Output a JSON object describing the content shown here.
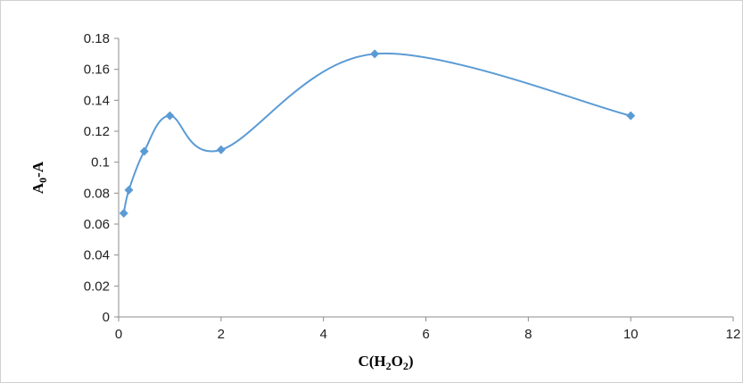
{
  "chart_data": {
    "type": "line",
    "title": "",
    "xlabel": {
      "base": "C(H",
      "sub1": "2",
      "mid": "O",
      "sub2": "2",
      "end": ")"
    },
    "ylabel": {
      "base": "A",
      "sub": "0",
      "end": "-A"
    },
    "xlim": [
      0,
      12
    ],
    "ylim": [
      0,
      0.18
    ],
    "xticks": [
      0,
      2,
      4,
      6,
      8,
      10,
      12
    ],
    "yticks": [
      0,
      0.02,
      0.04,
      0.06,
      0.08,
      0.1,
      0.12,
      0.14,
      0.16,
      0.18
    ],
    "ytick_labels": [
      "0",
      "0.02",
      "0.04",
      "0.06",
      "0.08",
      "0.1",
      "0.12",
      "0.14",
      "0.16",
      "0.18"
    ],
    "grid": false,
    "smooth": true,
    "series": [
      {
        "x": [
          0.1,
          0.2,
          0.5,
          1,
          2,
          5,
          10
        ],
        "y": [
          0.067,
          0.082,
          0.107,
          0.13,
          0.108,
          0.17,
          0.13
        ],
        "color": "#5b9bd5",
        "marker": "diamond"
      }
    ]
  }
}
